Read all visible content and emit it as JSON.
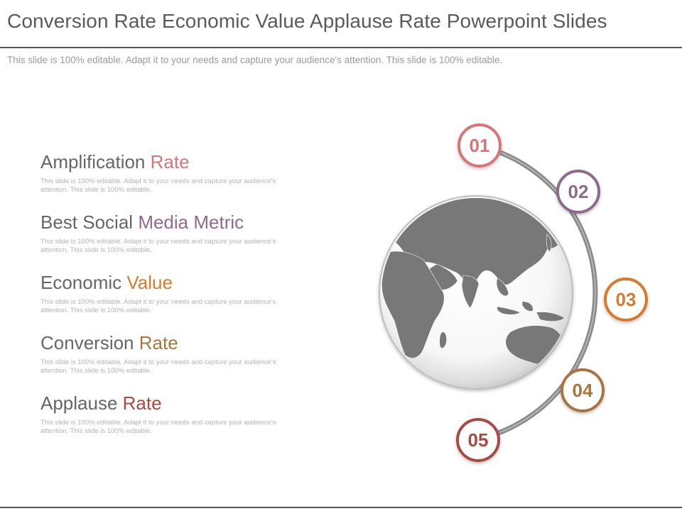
{
  "title": "Conversion Rate Economic Value Applause Rate Powerpoint Slides",
  "subtitle": "This slide is 100% editable. Adapt it to your needs and capture your audience's attention. This slide is 100% editable.",
  "items": [
    {
      "heading_main": "Amplification",
      "heading_accent": "Rate",
      "accent_color": "#d8747a",
      "description": "This slide is 100% editable. Adapt it to your needs and capture your audience's attention. This slide is 100% editable.",
      "number": "01"
    },
    {
      "heading_main": "Best Social",
      "heading_accent": "Media Metric",
      "accent_color": "#8e6a8c",
      "description": "This slide is 100% editable. Adapt it to your needs and capture your audience's attention. This slide is 100% editable.",
      "number": "02"
    },
    {
      "heading_main": "Economic",
      "heading_accent": "Value",
      "accent_color": "#d87a2b",
      "description": "This slide is 100% editable. Adapt it to your needs and capture your audience's attention. This slide is 100% editable.",
      "number": "03"
    },
    {
      "heading_main": "Conversion",
      "heading_accent": "Rate",
      "accent_color": "#a8753f",
      "description": "This slide is 100% editable. Adapt it to your needs and capture your audience's attention. This slide is 100% editable.",
      "number": "04"
    },
    {
      "heading_main": "Applause",
      "heading_accent": "Rate",
      "accent_color": "#a94a42",
      "description": "This slide is 100% editable. Adapt it to your needs and capture your audience's attention. This slide is 100% editable.",
      "number": "05"
    }
  ],
  "graphic": {
    "globe_icon": "globe-icon",
    "globe_land_color": "#787878",
    "arc_color": "#8a8a8a"
  }
}
